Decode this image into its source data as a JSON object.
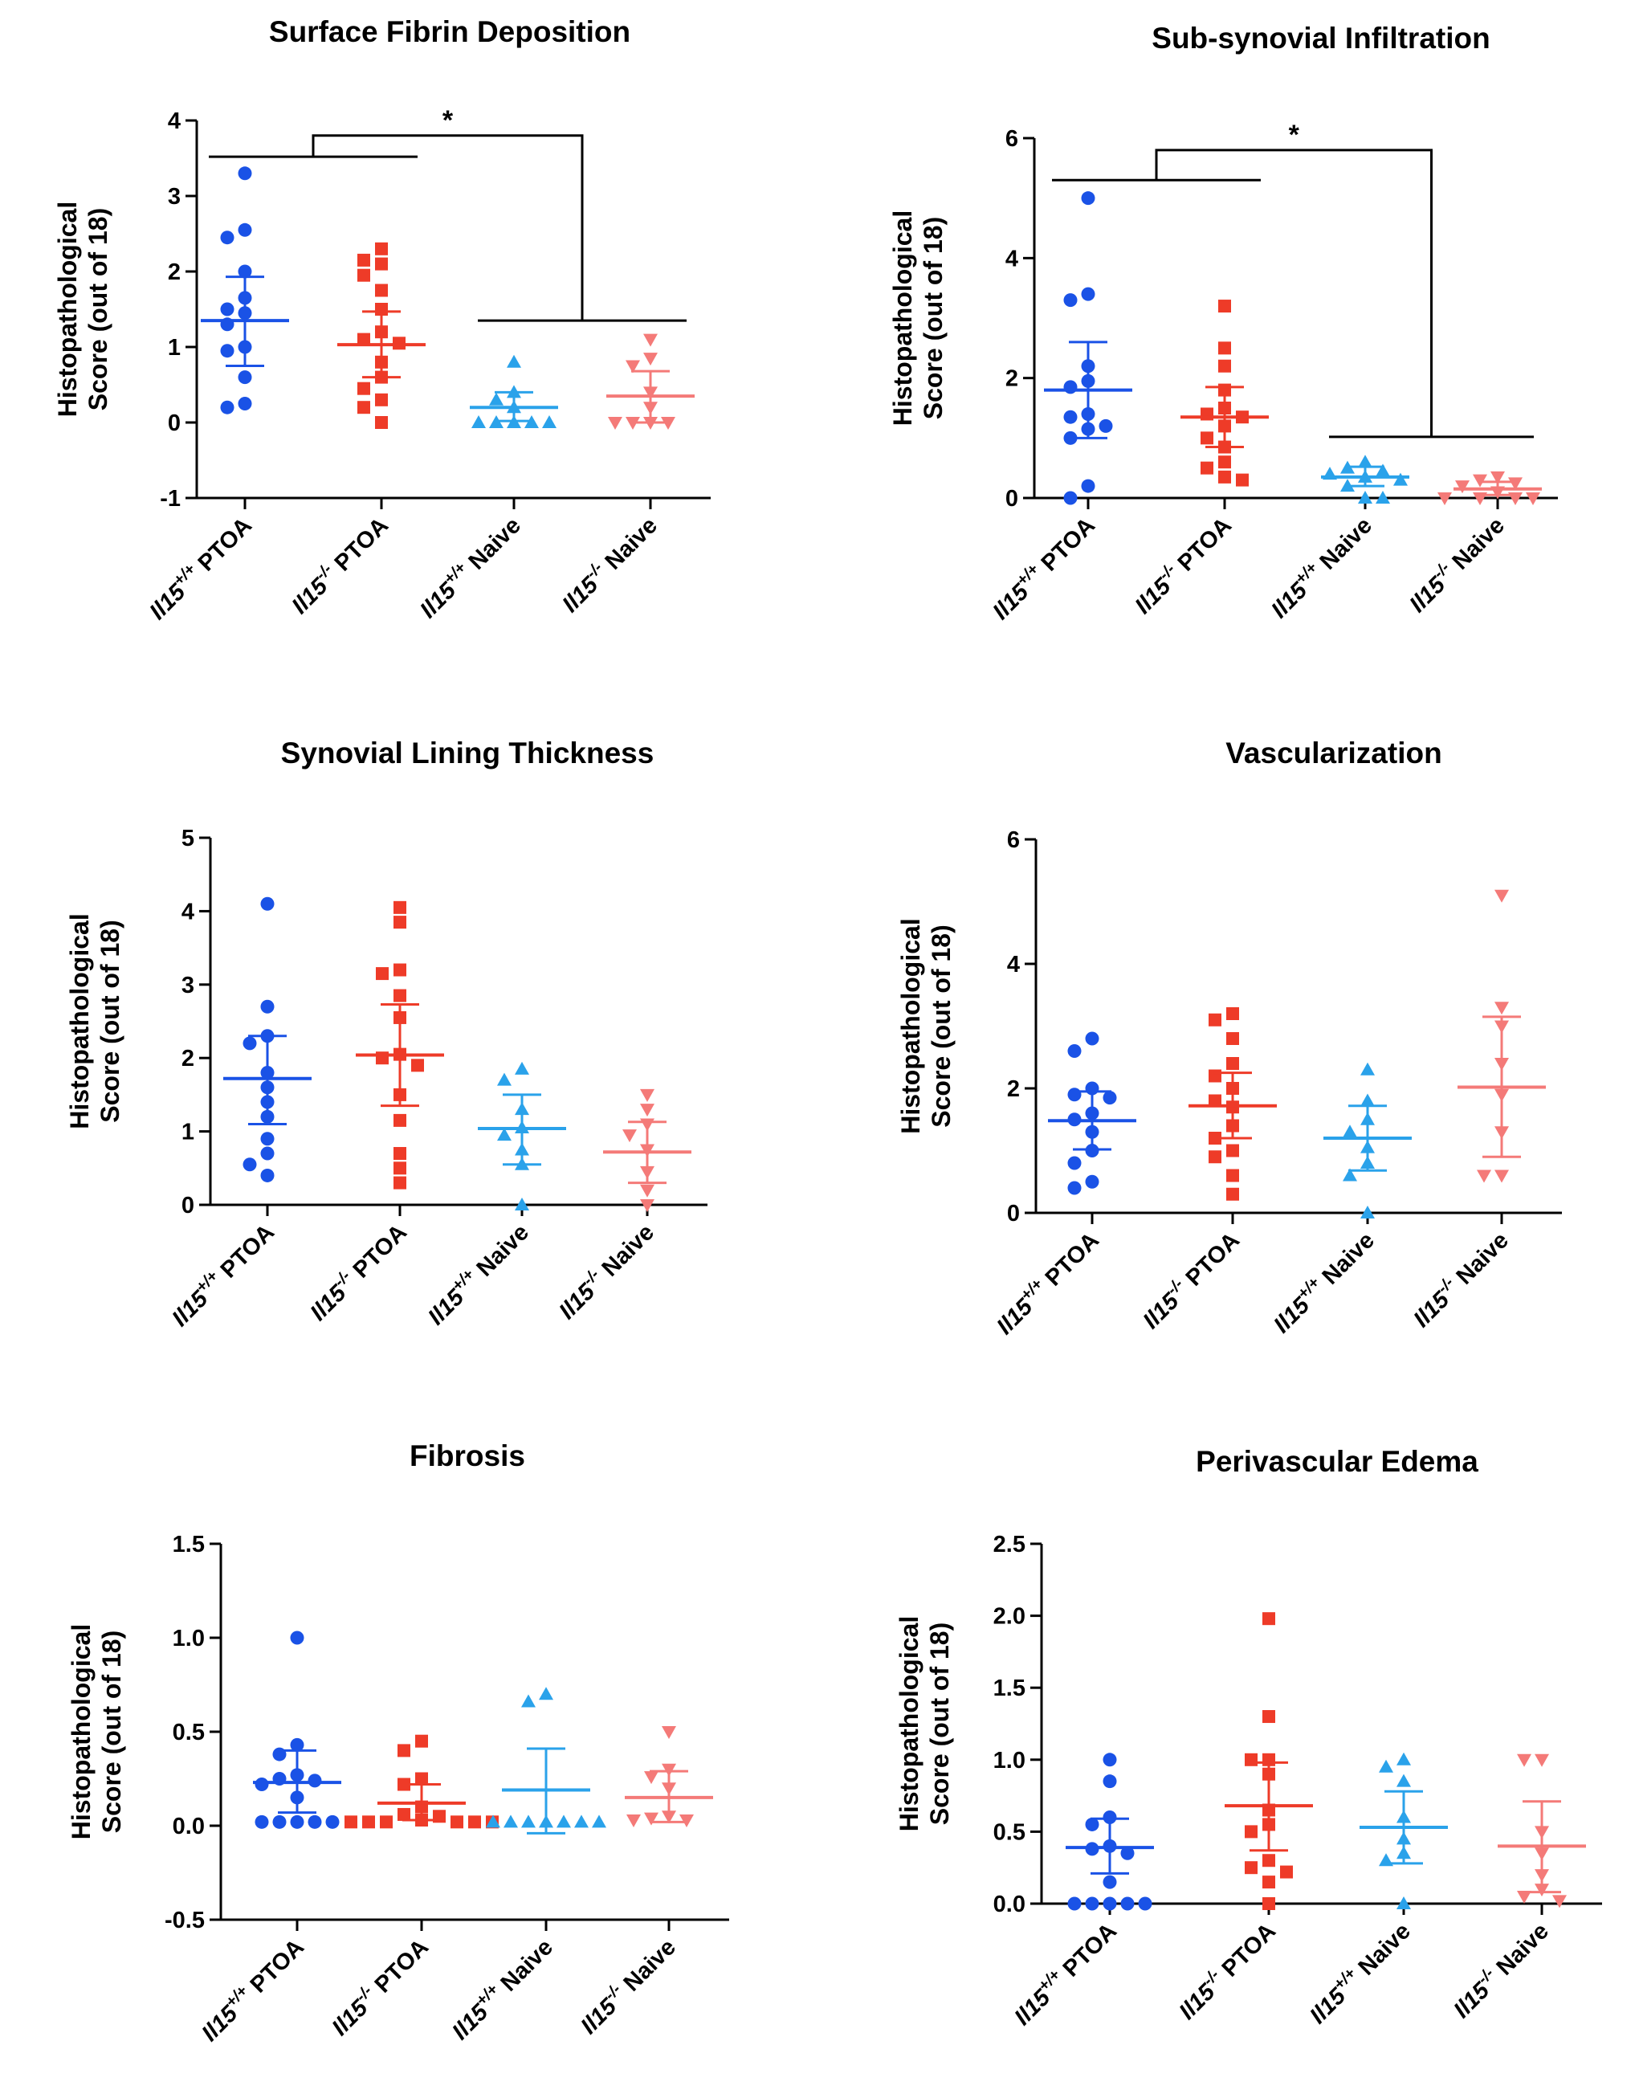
{
  "chart_data": [
    {
      "type": "scatter",
      "title": "Surface Fibrin Deposition",
      "ylabel_lines": [
        "Histopathological",
        "Score (out of 18)"
      ],
      "ylim": [
        -1,
        4
      ],
      "yticks": [
        -1,
        0,
        1,
        2,
        3,
        4
      ],
      "ytick_labels": [
        "-1",
        "0",
        "1",
        "2",
        "3",
        "4"
      ],
      "significance": {
        "label": "*",
        "group_left": [
          0,
          1
        ],
        "group_right": [
          2,
          3
        ],
        "left_bar_y": 3.52,
        "right_bar_y": 1.35,
        "top_y": 3.8
      },
      "groups": [
        {
          "label": "Il15",
          "superscript": "+/+",
          "suffix": "PTOA",
          "mean": 1.35,
          "ci": [
            0.75,
            1.93
          ],
          "values": [
            3.3,
            2.55,
            2.45,
            2.0,
            1.65,
            1.5,
            1.45,
            1.3,
            1.0,
            0.95,
            0.6,
            0.25,
            0.2
          ]
        },
        {
          "label": "Il15",
          "superscript": "-/-",
          "suffix": "PTOA",
          "mean": 1.03,
          "ci": [
            0.6,
            1.47
          ],
          "values": [
            2.3,
            2.15,
            2.1,
            1.95,
            1.75,
            1.5,
            1.2,
            1.1,
            1.05,
            0.8,
            0.6,
            0.45,
            0.3,
            0.2,
            0.0
          ]
        },
        {
          "label": "Il15",
          "superscript": "+/+",
          "suffix": "Naive",
          "mean": 0.2,
          "ci": [
            0.02,
            0.4
          ],
          "values": [
            0.8,
            0.4,
            0.3,
            0.2,
            0.0,
            0.0,
            0.0,
            0.0,
            0.0
          ]
        },
        {
          "label": "Il15",
          "superscript": "-/-",
          "suffix": "Naive",
          "mean": 0.35,
          "ci": [
            0.0,
            0.68
          ],
          "values": [
            1.1,
            0.85,
            0.75,
            0.4,
            0.2,
            0.0,
            0.0,
            0.0,
            0.0
          ]
        }
      ]
    },
    {
      "type": "scatter",
      "title": "Sub-synovial Infiltration",
      "ylabel_lines": [
        "Histopathological",
        "Score (out of 18)"
      ],
      "ylim": [
        0,
        6
      ],
      "yticks": [
        0,
        2,
        4,
        6
      ],
      "ytick_labels": [
        "0",
        "2",
        "4",
        "6"
      ],
      "significance": {
        "label": "*",
        "group_left": [
          0,
          1
        ],
        "group_right": [
          2,
          3
        ],
        "left_bar_y": 5.3,
        "right_bar_y": 1.02,
        "top_y": 5.8
      },
      "groups": [
        {
          "label": "Il15",
          "superscript": "+/+",
          "suffix": "PTOA",
          "mean": 1.8,
          "ci": [
            1.0,
            2.6
          ],
          "values": [
            5.0,
            3.4,
            3.3,
            2.2,
            1.95,
            1.85,
            1.4,
            1.35,
            1.2,
            1.15,
            1.0,
            0.2,
            0.0
          ]
        },
        {
          "label": "Il15",
          "superscript": "-/-",
          "suffix": "PTOA",
          "mean": 1.35,
          "ci": [
            0.85,
            1.85
          ],
          "values": [
            3.2,
            2.5,
            2.2,
            1.8,
            1.5,
            1.4,
            1.35,
            1.2,
            1.0,
            0.85,
            0.6,
            0.5,
            0.35,
            0.3
          ]
        },
        {
          "label": "Il15",
          "superscript": "+/+",
          "suffix": "Naive",
          "mean": 0.35,
          "ci": [
            0.2,
            0.52
          ],
          "values": [
            0.6,
            0.5,
            0.45,
            0.4,
            0.35,
            0.3,
            0.2,
            0.0,
            0.0
          ]
        },
        {
          "label": "Il15",
          "superscript": "-/-",
          "suffix": "Naive",
          "mean": 0.15,
          "ci": [
            0.05,
            0.27
          ],
          "values": [
            0.35,
            0.3,
            0.25,
            0.2,
            0.1,
            0.0,
            0.0,
            0.0,
            0.0
          ]
        }
      ]
    },
    {
      "type": "scatter",
      "title": "Synovial Lining Thickness",
      "ylabel_lines": [
        "Histopathological",
        "Score (out of 18)"
      ],
      "ylim": [
        0,
        5
      ],
      "yticks": [
        0,
        1,
        2,
        3,
        4,
        5
      ],
      "ytick_labels": [
        "0",
        "1",
        "2",
        "3",
        "4",
        "5"
      ],
      "groups": [
        {
          "label": "Il15",
          "superscript": "+/+",
          "suffix": "PTOA",
          "mean": 1.72,
          "ci": [
            1.1,
            2.3
          ],
          "values": [
            4.1,
            2.7,
            2.3,
            2.2,
            1.8,
            1.6,
            1.4,
            1.2,
            0.9,
            0.7,
            0.55,
            0.4
          ]
        },
        {
          "label": "Il15",
          "superscript": "-/-",
          "suffix": "PTOA",
          "mean": 2.04,
          "ci": [
            1.35,
            2.73
          ],
          "values": [
            4.05,
            3.85,
            3.2,
            3.15,
            2.85,
            2.55,
            2.05,
            2.0,
            1.9,
            1.5,
            1.15,
            0.7,
            0.5,
            0.3
          ]
        },
        {
          "label": "Il15",
          "superscript": "+/+",
          "suffix": "Naive",
          "mean": 1.04,
          "ci": [
            0.55,
            1.5
          ],
          "values": [
            1.85,
            1.7,
            1.3,
            1.05,
            0.95,
            0.75,
            0.55,
            0.0
          ]
        },
        {
          "label": "Il15",
          "superscript": "-/-",
          "suffix": "Naive",
          "mean": 0.72,
          "ci": [
            0.3,
            1.13
          ],
          "values": [
            1.5,
            1.3,
            1.1,
            0.95,
            0.75,
            0.45,
            0.2,
            0.0
          ]
        }
      ]
    },
    {
      "type": "scatter",
      "title": "Vascularization",
      "ylabel_lines": [
        "Histopathological",
        "Score (out of 18)"
      ],
      "ylim": [
        0,
        6
      ],
      "yticks": [
        0,
        2,
        4,
        6
      ],
      "ytick_labels": [
        "0",
        "2",
        "4",
        "6"
      ],
      "groups": [
        {
          "label": "Il15",
          "superscript": "+/+",
          "suffix": "PTOA",
          "mean": 1.48,
          "ci": [
            1.02,
            1.95
          ],
          "values": [
            2.8,
            2.6,
            2.0,
            1.9,
            1.85,
            1.6,
            1.5,
            1.3,
            1.0,
            0.8,
            0.5,
            0.4
          ]
        },
        {
          "label": "Il15",
          "superscript": "-/-",
          "suffix": "PTOA",
          "mean": 1.72,
          "ci": [
            1.2,
            2.25
          ],
          "values": [
            3.2,
            3.1,
            2.8,
            2.4,
            2.2,
            2.0,
            1.8,
            1.7,
            1.4,
            1.2,
            1.0,
            0.9,
            0.6,
            0.3
          ]
        },
        {
          "label": "Il15",
          "superscript": "+/+",
          "suffix": "Naive",
          "mean": 1.2,
          "ci": [
            0.68,
            1.72
          ],
          "values": [
            2.3,
            1.8,
            1.5,
            1.3,
            1.05,
            0.8,
            0.6,
            0.0
          ]
        },
        {
          "label": "Il15",
          "superscript": "-/-",
          "suffix": "Naive",
          "mean": 2.02,
          "ci": [
            0.9,
            3.15
          ],
          "values": [
            5.1,
            3.3,
            3.0,
            2.4,
            1.9,
            1.3,
            0.6,
            0.6
          ]
        }
      ]
    },
    {
      "type": "scatter",
      "title": "Fibrosis",
      "ylabel_lines": [
        "Histopathological",
        "Score (out of 18)"
      ],
      "ylim": [
        -0.5,
        1.5
      ],
      "yticks": [
        -0.5,
        0.0,
        0.5,
        1.0,
        1.5
      ],
      "ytick_labels": [
        "-0.5",
        "0.0",
        "0.5",
        "1.0",
        "1.5"
      ],
      "groups": [
        {
          "label": "Il15",
          "superscript": "+/+",
          "suffix": "PTOA",
          "mean": 0.23,
          "ci": [
            0.07,
            0.4
          ],
          "values": [
            1.0,
            0.43,
            0.38,
            0.27,
            0.25,
            0.24,
            0.22,
            0.15,
            0.02,
            0.02,
            0.02,
            0.02,
            0.02
          ]
        },
        {
          "label": "Il15",
          "superscript": "-/-",
          "suffix": "PTOA",
          "mean": 0.12,
          "ci": [
            0.03,
            0.22
          ],
          "values": [
            0.45,
            0.4,
            0.25,
            0.22,
            0.1,
            0.06,
            0.05,
            0.03,
            0.02,
            0.02,
            0.02,
            0.02,
            0.02,
            0.02
          ]
        },
        {
          "label": "Il15",
          "superscript": "+/+",
          "suffix": "Naive",
          "mean": 0.19,
          "ci": [
            -0.04,
            0.41
          ],
          "values": [
            0.7,
            0.66,
            0.02,
            0.02,
            0.02,
            0.02,
            0.02,
            0.02,
            0.02
          ]
        },
        {
          "label": "Il15",
          "superscript": "-/-",
          "suffix": "Naive",
          "mean": 0.15,
          "ci": [
            0.02,
            0.29
          ],
          "values": [
            0.5,
            0.3,
            0.26,
            0.2,
            0.05,
            0.04,
            0.03,
            0.03
          ]
        }
      ]
    },
    {
      "type": "scatter",
      "title": "Perivascular Edema",
      "ylabel_lines": [
        "Histopathological",
        "Score (out of 18)"
      ],
      "ylim": [
        0.0,
        2.5
      ],
      "yticks": [
        0.0,
        0.5,
        1.0,
        1.5,
        2.0,
        2.5
      ],
      "ytick_labels": [
        "0.0",
        "0.5",
        "1.0",
        "1.5",
        "2.0",
        "2.5"
      ],
      "groups": [
        {
          "label": "Il15",
          "superscript": "+/+",
          "suffix": "PTOA",
          "mean": 0.39,
          "ci": [
            0.21,
            0.59
          ],
          "values": [
            1.0,
            0.85,
            0.6,
            0.55,
            0.4,
            0.38,
            0.35,
            0.15,
            0.0,
            0.0,
            0.0,
            0.0,
            0.0
          ]
        },
        {
          "label": "Il15",
          "superscript": "-/-",
          "suffix": "PTOA",
          "mean": 0.68,
          "ci": [
            0.37,
            0.98
          ],
          "values": [
            1.98,
            1.3,
            1.0,
            1.0,
            0.9,
            0.65,
            0.55,
            0.5,
            0.3,
            0.25,
            0.22,
            0.15,
            0.0
          ]
        },
        {
          "label": "Il15",
          "superscript": "+/+",
          "suffix": "Naive",
          "mean": 0.53,
          "ci": [
            0.28,
            0.78
          ],
          "values": [
            1.0,
            0.95,
            0.85,
            0.6,
            0.45,
            0.35,
            0.3,
            0.0
          ]
        },
        {
          "label": "Il15",
          "superscript": "-/-",
          "suffix": "Naive",
          "mean": 0.4,
          "ci": [
            0.08,
            0.71
          ],
          "values": [
            1.0,
            1.0,
            0.5,
            0.35,
            0.2,
            0.1,
            0.05,
            0.02
          ]
        }
      ]
    }
  ],
  "colors": {
    "group0": "#1a52e6",
    "group1": "#ee3b28",
    "group2": "#2aa2ea",
    "group3": "#f47a78",
    "axis": "#000000"
  },
  "markers": [
    "circle",
    "square",
    "triangle-up",
    "triangle-down"
  ]
}
